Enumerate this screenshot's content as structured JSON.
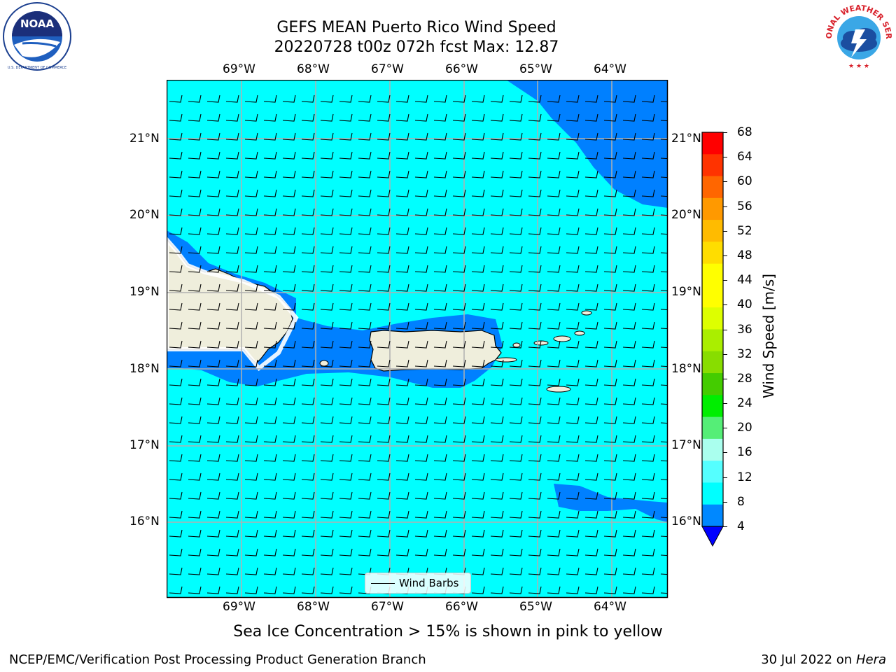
{
  "title": {
    "line1": "GEFS MEAN Puerto Rico Wind Speed",
    "line2": "20220728 t00z 072h fcst   Max: 12.87"
  },
  "logos": {
    "left": {
      "icon": "noaa-logo",
      "text": "NOAA",
      "ring_text": "NATIONAL OCEANIC AND ATMOSPHERIC ADMINISTRATION · U.S. DEPARTMENT OF COMMERCE"
    },
    "right": {
      "icon": "nws-logo",
      "ring_text": "NATIONAL WEATHER SERVICE"
    }
  },
  "map": {
    "lon_ticks": [
      "69°W",
      "68°W",
      "67°W",
      "66°W",
      "65°W",
      "64°W"
    ],
    "lat_ticks": [
      "21°N",
      "20°N",
      "19°N",
      "18°N",
      "17°N",
      "16°N"
    ],
    "legend_label": "Wind Barbs",
    "colors": {
      "ocean_fill": "#00ffff",
      "low_wind_fill": "#0080ff",
      "lowest_wind_fill": "#0000ff",
      "land": "#efeedc",
      "grid": "#b0b0b0"
    }
  },
  "colorbar": {
    "label": "Wind Speed [m/s]",
    "ticks": [
      "68",
      "64",
      "60",
      "56",
      "52",
      "48",
      "44",
      "40",
      "36",
      "32",
      "28",
      "24",
      "20",
      "16",
      "12",
      "8",
      "4"
    ],
    "colors": [
      "#ff0000",
      "#ff3300",
      "#ff6600",
      "#ff9900",
      "#ffbb00",
      "#ffdd00",
      "#ffff00",
      "#ffff00",
      "#ddff00",
      "#aaee00",
      "#88dd00",
      "#44cc00",
      "#00ee00",
      "#55ee77",
      "#aaffee",
      "#55ffff",
      "#00ffff",
      "#0088ff"
    ],
    "extend_color": "#0000ff"
  },
  "annotation": "Sea Ice Concentration > 15% is shown in pink to yellow",
  "footer": {
    "left": "NCEP/EMC/Verification Post Processing Product Generation Branch",
    "right_date": "30 Jul 2022 on ",
    "right_host": "Hera"
  }
}
